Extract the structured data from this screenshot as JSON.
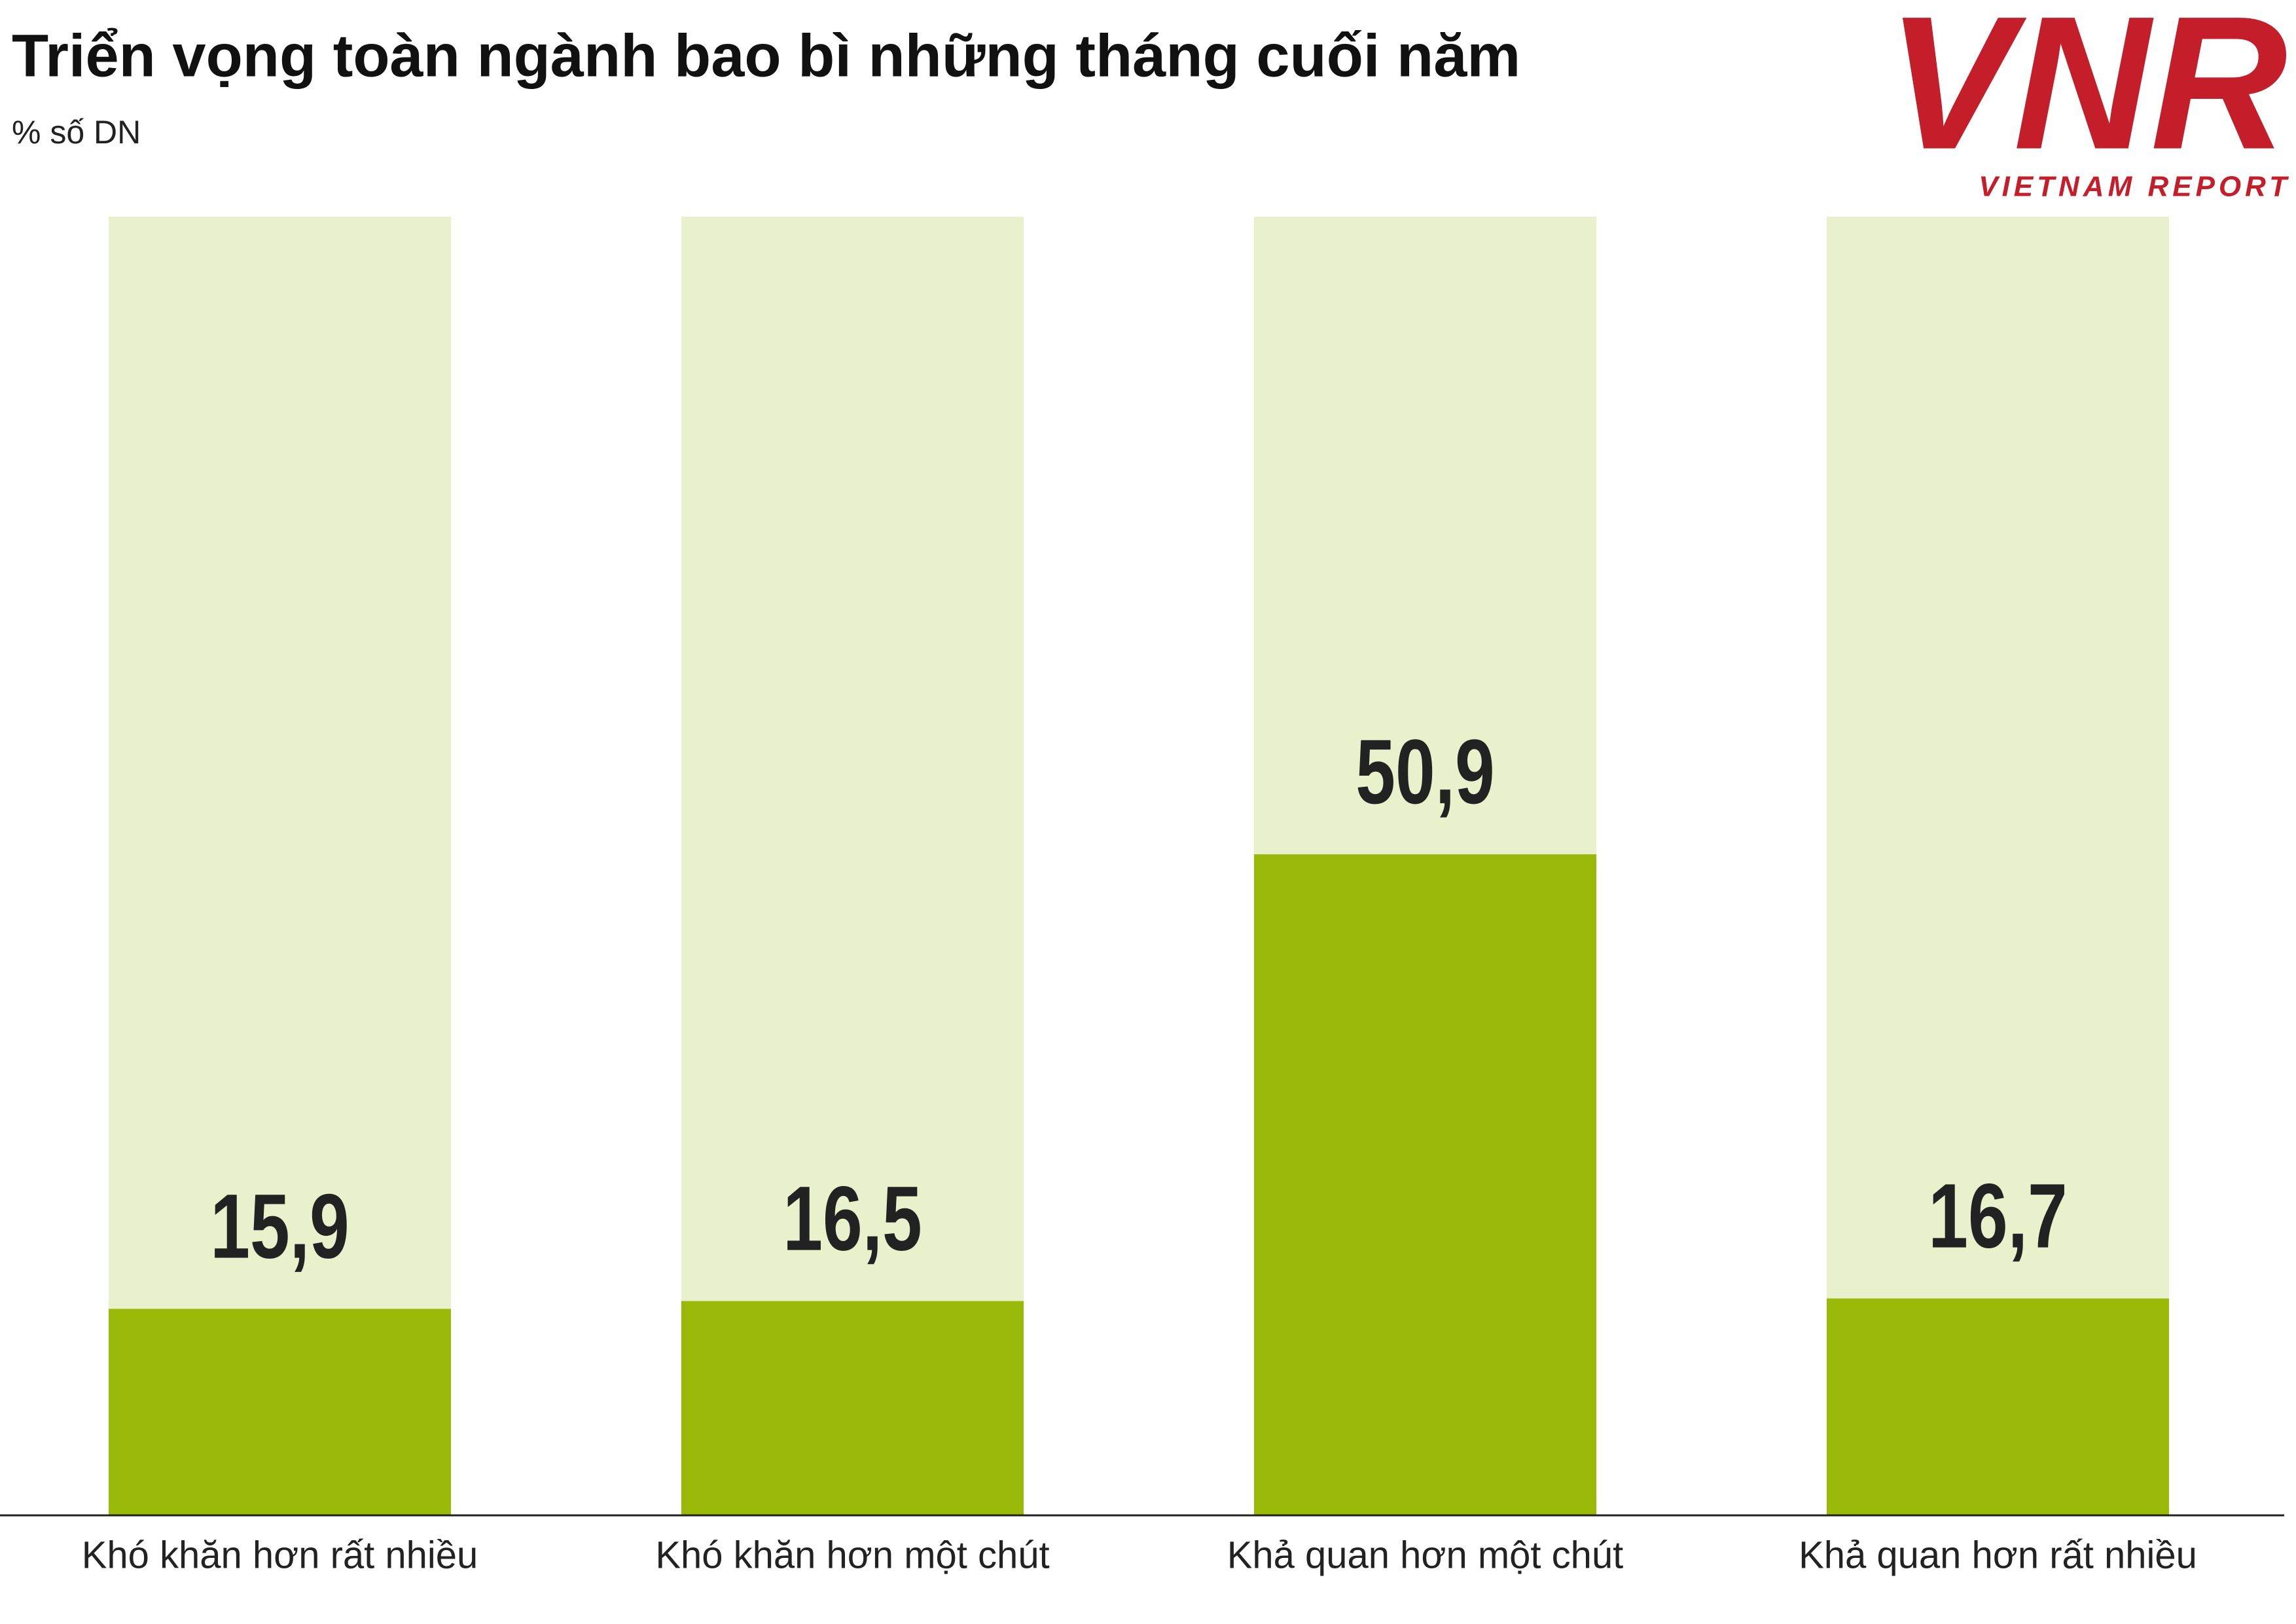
{
  "chart_data": {
    "type": "bar",
    "title": "Triển vọng toàn ngành bao bì những tháng cuối năm",
    "subtitle": "% số DN",
    "categories": [
      "Khó khăn hơn rất nhiều",
      "Khó khăn hơn một chút",
      "Khả quan hơn một chút",
      "Khả quan hơn rất nhiều"
    ],
    "values": [
      15.9,
      16.5,
      50.9,
      16.7
    ],
    "value_labels": [
      "15,9",
      "16,5",
      "50,9",
      "16,7"
    ],
    "color": "#9ab808",
    "track_color": "#e8f0cc",
    "ylim": [
      0,
      100
    ]
  },
  "logo": {
    "mark": "VNR",
    "text": "VIETNAM REPORT"
  }
}
